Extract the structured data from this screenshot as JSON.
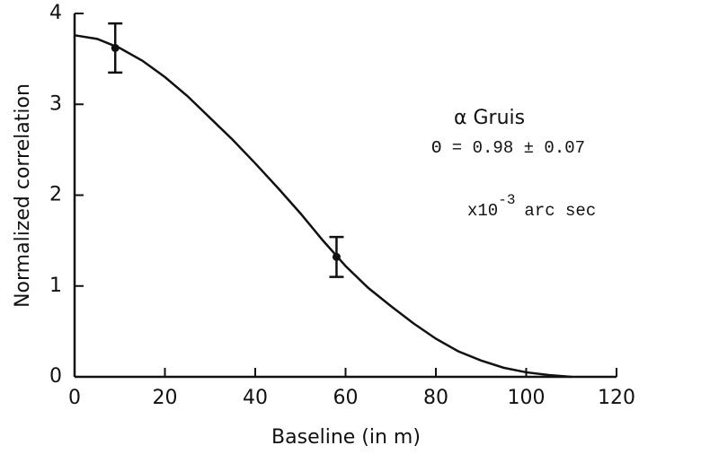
{
  "chart_data": {
    "type": "scatter",
    "x_label": "Baseline (in m)",
    "y_label": "Normalized correlation",
    "xlim": [
      0,
      120
    ],
    "xticks": [
      0,
      20,
      40,
      60,
      80,
      100,
      120
    ],
    "ylim": [
      0,
      4
    ],
    "yticks": [
      0,
      1,
      2,
      3,
      4
    ],
    "curve": {
      "color": "#111",
      "x": [
        0,
        5,
        10,
        15,
        20,
        25,
        30,
        35,
        40,
        45,
        50,
        55,
        60,
        65,
        70,
        75,
        80,
        85,
        90,
        95,
        100,
        105,
        110
      ],
      "values": [
        3.76,
        3.72,
        3.62,
        3.48,
        3.3,
        3.09,
        2.85,
        2.61,
        2.35,
        2.08,
        1.8,
        1.5,
        1.22,
        0.98,
        0.78,
        0.59,
        0.42,
        0.28,
        0.18,
        0.1,
        0.05,
        0.02,
        0.0
      ]
    },
    "points": {
      "color": "#111",
      "x": [
        9,
        58
      ],
      "values": [
        3.62,
        1.32
      ],
      "errors": [
        0.27,
        0.22
      ]
    },
    "annotations": {
      "star": "α Gruis",
      "theta": "Θ = 0.98 ± 0.07",
      "unit_base": "x10",
      "unit_exp": "-3",
      "unit_rest": "arc sec"
    }
  }
}
